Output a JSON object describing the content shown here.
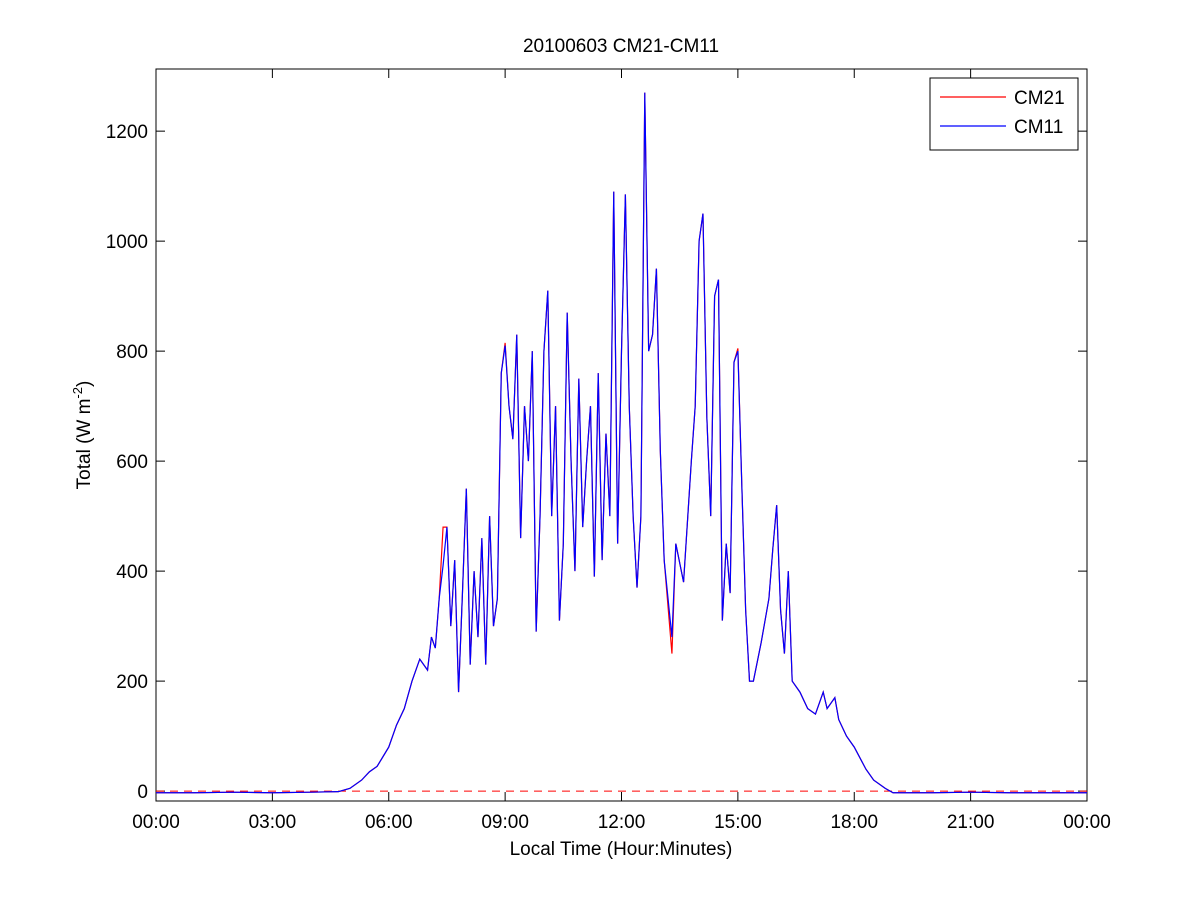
{
  "chart_data": {
    "type": "line",
    "title": "20100603 CM21-CM11",
    "xlabel": "Local Time (Hour:Minutes)",
    "ylabel": {
      "text": "Total (W m",
      "sup": "-2",
      "end": ")"
    },
    "x": [
      0,
      1,
      2,
      3,
      4,
      4.7,
      5.0,
      5.3,
      5.5,
      5.7,
      6.0,
      6.2,
      6.4,
      6.6,
      6.8,
      7.0,
      7.1,
      7.2,
      7.3,
      7.4,
      7.5,
      7.6,
      7.7,
      7.8,
      7.9,
      8.0,
      8.1,
      8.2,
      8.3,
      8.4,
      8.5,
      8.6,
      8.7,
      8.8,
      8.9,
      9.0,
      9.1,
      9.2,
      9.3,
      9.4,
      9.5,
      9.6,
      9.7,
      9.8,
      9.9,
      10.0,
      10.1,
      10.2,
      10.3,
      10.4,
      10.5,
      10.6,
      10.7,
      10.8,
      10.9,
      11.0,
      11.1,
      11.2,
      11.3,
      11.4,
      11.5,
      11.6,
      11.7,
      11.8,
      11.9,
      12.0,
      12.1,
      12.2,
      12.3,
      12.4,
      12.5,
      12.6,
      12.7,
      12.8,
      12.9,
      13.0,
      13.1,
      13.3,
      13.4,
      13.6,
      13.8,
      13.9,
      14.0,
      14.1,
      14.2,
      14.3,
      14.4,
      14.5,
      14.6,
      14.7,
      14.8,
      14.9,
      15.0,
      15.1,
      15.2,
      15.3,
      15.4,
      15.6,
      15.8,
      15.9,
      16.0,
      16.1,
      16.2,
      16.3,
      16.4,
      16.6,
      16.8,
      17.0,
      17.2,
      17.3,
      17.5,
      17.6,
      17.8,
      18.0,
      18.3,
      18.5,
      18.8,
      19.0,
      20,
      21,
      22,
      23,
      24
    ],
    "series": [
      {
        "name": "CM21",
        "color": "#ff0000",
        "values": [
          -3,
          -3,
          -2,
          -3,
          -2,
          -1,
          5,
          20,
          35,
          45,
          80,
          120,
          150,
          200,
          240,
          220,
          280,
          260,
          350,
          480,
          480,
          300,
          420,
          180,
          360,
          550,
          230,
          400,
          280,
          460,
          230,
          500,
          300,
          350,
          760,
          815,
          700,
          640,
          830,
          460,
          700,
          600,
          800,
          290,
          500,
          800,
          910,
          500,
          700,
          310,
          450,
          870,
          600,
          400,
          750,
          480,
          600,
          700,
          390,
          760,
          420,
          650,
          500,
          1090,
          450,
          800,
          1085,
          700,
          500,
          370,
          500,
          1270,
          800,
          830,
          950,
          620,
          420,
          250,
          450,
          380,
          600,
          700,
          1000,
          1050,
          680,
          500,
          900,
          930,
          310,
          450,
          360,
          780,
          805,
          560,
          330,
          200,
          200,
          270,
          350,
          440,
          520,
          330,
          250,
          400,
          200,
          180,
          150,
          140,
          180,
          150,
          170,
          130,
          100,
          80,
          40,
          20,
          5,
          -3,
          -3,
          -2,
          -3,
          -3,
          -3
        ]
      },
      {
        "name": "CM11",
        "color": "#0000ff",
        "values": [
          -3,
          -3,
          -2,
          -3,
          -2,
          -1,
          5,
          20,
          35,
          45,
          80,
          120,
          150,
          200,
          240,
          220,
          280,
          260,
          350,
          410,
          480,
          300,
          420,
          180,
          360,
          550,
          230,
          400,
          280,
          460,
          230,
          500,
          300,
          350,
          760,
          810,
          700,
          640,
          830,
          460,
          700,
          600,
          800,
          290,
          500,
          800,
          910,
          500,
          700,
          310,
          450,
          870,
          600,
          400,
          750,
          480,
          600,
          700,
          390,
          760,
          420,
          650,
          500,
          1090,
          450,
          800,
          1085,
          700,
          500,
          370,
          500,
          1270,
          800,
          830,
          950,
          620,
          420,
          280,
          450,
          380,
          600,
          700,
          1000,
          1050,
          680,
          500,
          900,
          930,
          310,
          450,
          360,
          780,
          800,
          560,
          330,
          200,
          200,
          270,
          350,
          440,
          520,
          330,
          250,
          400,
          200,
          180,
          150,
          140,
          180,
          150,
          170,
          130,
          100,
          80,
          40,
          20,
          5,
          -3,
          -3,
          -2,
          -3,
          -3,
          -3
        ]
      }
    ],
    "reference_line": {
      "value": 0,
      "color": "#ff0000",
      "style": "dashed"
    },
    "xlim": [
      0,
      24
    ],
    "xticks": [
      {
        "value": 0,
        "label": "00:00"
      },
      {
        "value": 3,
        "label": "03:00"
      },
      {
        "value": 6,
        "label": "06:00"
      },
      {
        "value": 9,
        "label": "09:00"
      },
      {
        "value": 12,
        "label": "12:00"
      },
      {
        "value": 15,
        "label": "15:00"
      },
      {
        "value": 18,
        "label": "18:00"
      },
      {
        "value": 21,
        "label": "21:00"
      },
      {
        "value": 24,
        "label": "00:00"
      }
    ],
    "ylim": [
      -18,
      1313
    ],
    "yticks": [
      0,
      200,
      400,
      600,
      800,
      1000,
      1200
    ],
    "legend": "upper right",
    "grid": false
  }
}
